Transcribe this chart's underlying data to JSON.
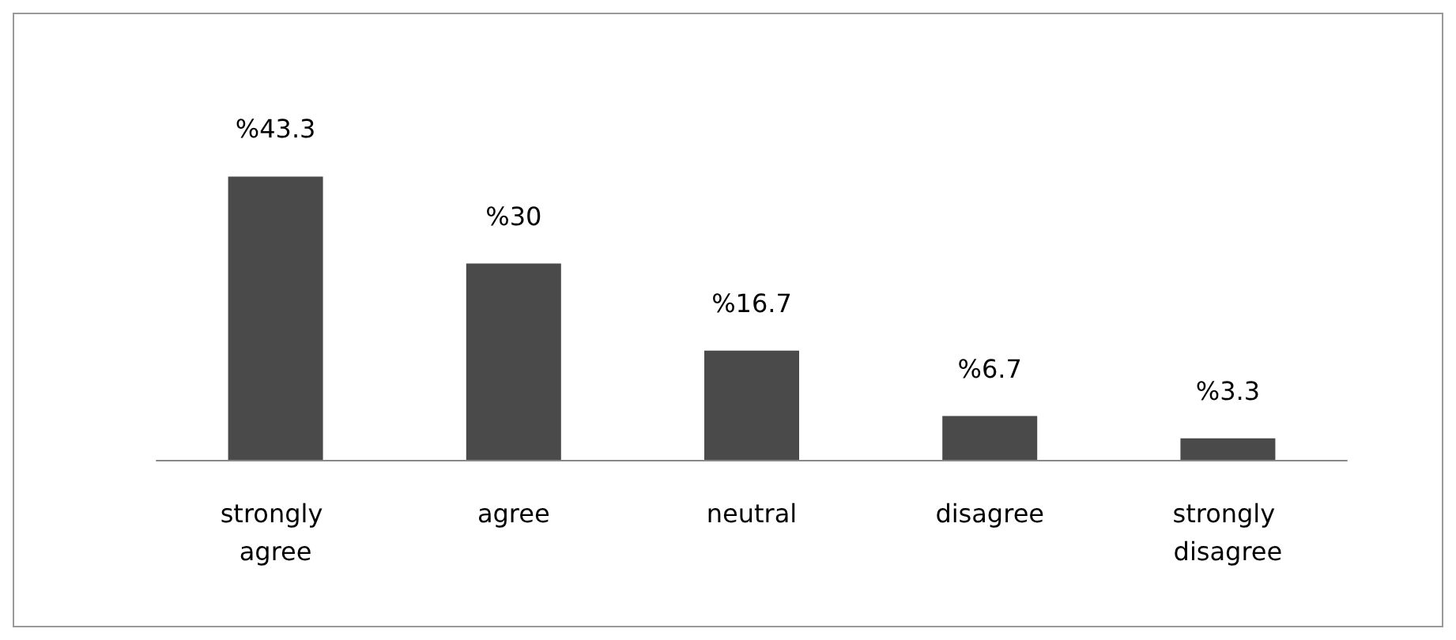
{
  "chart_data": {
    "type": "bar",
    "categories": [
      "strongly agree",
      "agree",
      "neutral",
      "disagree",
      "strongly disagree"
    ],
    "values": [
      43.3,
      30,
      16.7,
      6.7,
      3.3
    ],
    "value_labels": [
      "%43.3",
      "%30",
      "%16.7",
      "%6.7",
      "%3.3"
    ],
    "color": "#4a4a4a"
  }
}
